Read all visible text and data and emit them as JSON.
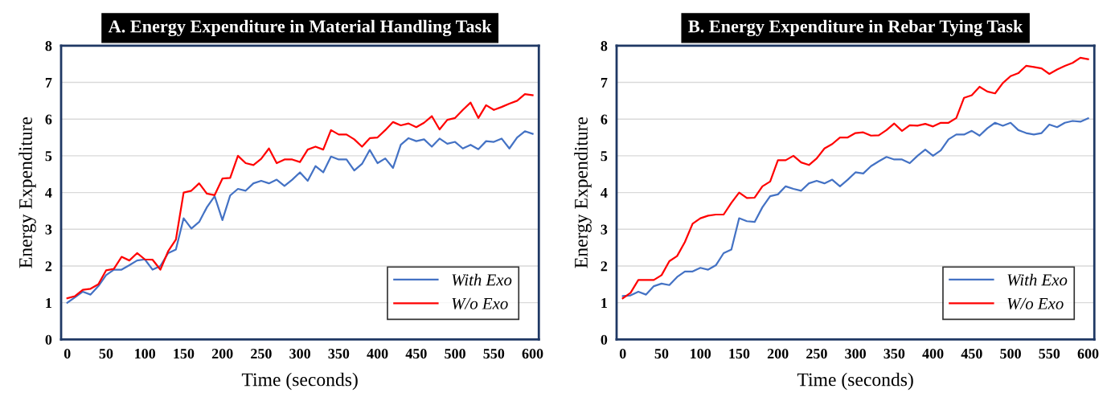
{
  "chart_data": [
    {
      "type": "line",
      "title": "A. Energy Expenditure in Material Handling Task",
      "xlabel": "Time (seconds)",
      "ylabel": "Energy Expenditure",
      "x": [
        0,
        10,
        20,
        30,
        40,
        50,
        60,
        70,
        80,
        90,
        100,
        110,
        120,
        130,
        140,
        150,
        160,
        170,
        180,
        190,
        200,
        210,
        220,
        230,
        240,
        250,
        260,
        270,
        280,
        290,
        300,
        310,
        320,
        330,
        340,
        350,
        360,
        370,
        380,
        390,
        400,
        410,
        420,
        430,
        440,
        450,
        460,
        470,
        480,
        490,
        500,
        510,
        520,
        530,
        540,
        550,
        560,
        570,
        580,
        590,
        600
      ],
      "series": [
        {
          "name": "With Exo",
          "color": "#4472c4",
          "values": [
            1.0,
            1.15,
            1.3,
            1.22,
            1.45,
            1.75,
            1.9,
            1.9,
            2.02,
            2.15,
            2.18,
            1.9,
            2.0,
            2.35,
            2.45,
            3.3,
            3.02,
            3.2,
            3.6,
            3.9,
            3.25,
            3.92,
            4.1,
            4.05,
            4.25,
            4.32,
            4.25,
            4.35,
            4.18,
            4.35,
            4.55,
            4.32,
            4.72,
            4.55,
            4.98,
            4.9,
            4.9,
            4.6,
            4.78,
            5.16,
            4.8,
            4.93,
            4.67,
            5.3,
            5.48,
            5.4,
            5.45,
            5.25,
            5.47,
            5.33,
            5.38,
            5.2,
            5.3,
            5.18,
            5.4,
            5.38,
            5.47,
            5.2,
            5.5,
            5.67,
            5.6
          ]
        },
        {
          "name": "W/o Exo",
          "color": "#ff0000",
          "values": [
            1.12,
            1.18,
            1.35,
            1.38,
            1.5,
            1.88,
            1.92,
            2.25,
            2.15,
            2.35,
            2.18,
            2.17,
            1.9,
            2.4,
            2.72,
            4.0,
            4.05,
            4.25,
            3.97,
            3.93,
            4.38,
            4.4,
            5.0,
            4.8,
            4.75,
            4.92,
            5.2,
            4.8,
            4.9,
            4.9,
            4.83,
            5.17,
            5.25,
            5.17,
            5.7,
            5.58,
            5.58,
            5.45,
            5.25,
            5.48,
            5.5,
            5.7,
            5.92,
            5.83,
            5.88,
            5.78,
            5.9,
            6.08,
            5.72,
            5.98,
            6.03,
            6.25,
            6.45,
            6.03,
            6.38,
            6.25,
            6.33,
            6.42,
            6.5,
            6.68,
            6.65
          ]
        }
      ],
      "xlim": [
        -8,
        608
      ],
      "xticks": [
        0,
        50,
        100,
        150,
        200,
        250,
        300,
        350,
        400,
        450,
        500,
        550,
        600
      ],
      "ylim": [
        0,
        8
      ],
      "yticks": [
        0,
        1,
        2,
        3,
        4,
        5,
        6,
        7,
        8
      ],
      "grid": "y",
      "legend": "bottom right",
      "line_style": "solid",
      "marker": "none"
    },
    {
      "type": "line",
      "title": "B. Energy Expenditure in Rebar Tying Task",
      "xlabel": "Time (seconds)",
      "ylabel": "Energy Expenditure",
      "x": [
        0,
        10,
        20,
        30,
        40,
        50,
        60,
        70,
        80,
        90,
        100,
        110,
        120,
        130,
        140,
        150,
        160,
        170,
        180,
        190,
        200,
        210,
        220,
        230,
        240,
        250,
        260,
        270,
        280,
        290,
        300,
        310,
        320,
        330,
        340,
        350,
        360,
        370,
        380,
        390,
        400,
        410,
        420,
        430,
        440,
        450,
        460,
        470,
        480,
        490,
        500,
        510,
        520,
        530,
        540,
        550,
        560,
        570,
        580,
        590,
        600
      ],
      "series": [
        {
          "name": "With Exo",
          "color": "#4472c4",
          "values": [
            1.18,
            1.2,
            1.3,
            1.22,
            1.45,
            1.52,
            1.48,
            1.7,
            1.85,
            1.85,
            1.95,
            1.9,
            2.02,
            2.35,
            2.45,
            3.3,
            3.22,
            3.2,
            3.6,
            3.9,
            3.95,
            4.17,
            4.1,
            4.05,
            4.25,
            4.32,
            4.25,
            4.35,
            4.17,
            4.35,
            4.55,
            4.52,
            4.72,
            4.85,
            4.97,
            4.9,
            4.9,
            4.8,
            5.0,
            5.17,
            5.0,
            5.15,
            5.45,
            5.58,
            5.58,
            5.68,
            5.55,
            5.75,
            5.9,
            5.82,
            5.9,
            5.7,
            5.62,
            5.58,
            5.62,
            5.85,
            5.78,
            5.9,
            5.95,
            5.93,
            6.02
          ]
        },
        {
          "name": "W/o Exo",
          "color": "#ff0000",
          "values": [
            1.12,
            1.27,
            1.62,
            1.62,
            1.62,
            1.75,
            2.13,
            2.27,
            2.65,
            3.15,
            3.3,
            3.37,
            3.4,
            3.4,
            3.72,
            4.0,
            3.85,
            3.86,
            4.17,
            4.3,
            4.88,
            4.88,
            5.0,
            4.82,
            4.75,
            4.93,
            5.2,
            5.32,
            5.5,
            5.5,
            5.62,
            5.64,
            5.55,
            5.56,
            5.7,
            5.88,
            5.68,
            5.83,
            5.82,
            5.87,
            5.8,
            5.9,
            5.9,
            6.03,
            6.58,
            6.65,
            6.88,
            6.75,
            6.7,
            6.98,
            7.17,
            7.25,
            7.45,
            7.42,
            7.38,
            7.23,
            7.35,
            7.45,
            7.53,
            7.67,
            7.63
          ]
        }
      ],
      "xlim": [
        -8,
        608
      ],
      "xticks": [
        0,
        50,
        100,
        150,
        200,
        250,
        300,
        350,
        400,
        450,
        500,
        550,
        600
      ],
      "ylim": [
        0,
        8
      ],
      "yticks": [
        0,
        1,
        2,
        3,
        4,
        5,
        6,
        7,
        8
      ],
      "grid": "y",
      "legend": "bottom right",
      "line_style": "solid",
      "marker": "none"
    }
  ]
}
